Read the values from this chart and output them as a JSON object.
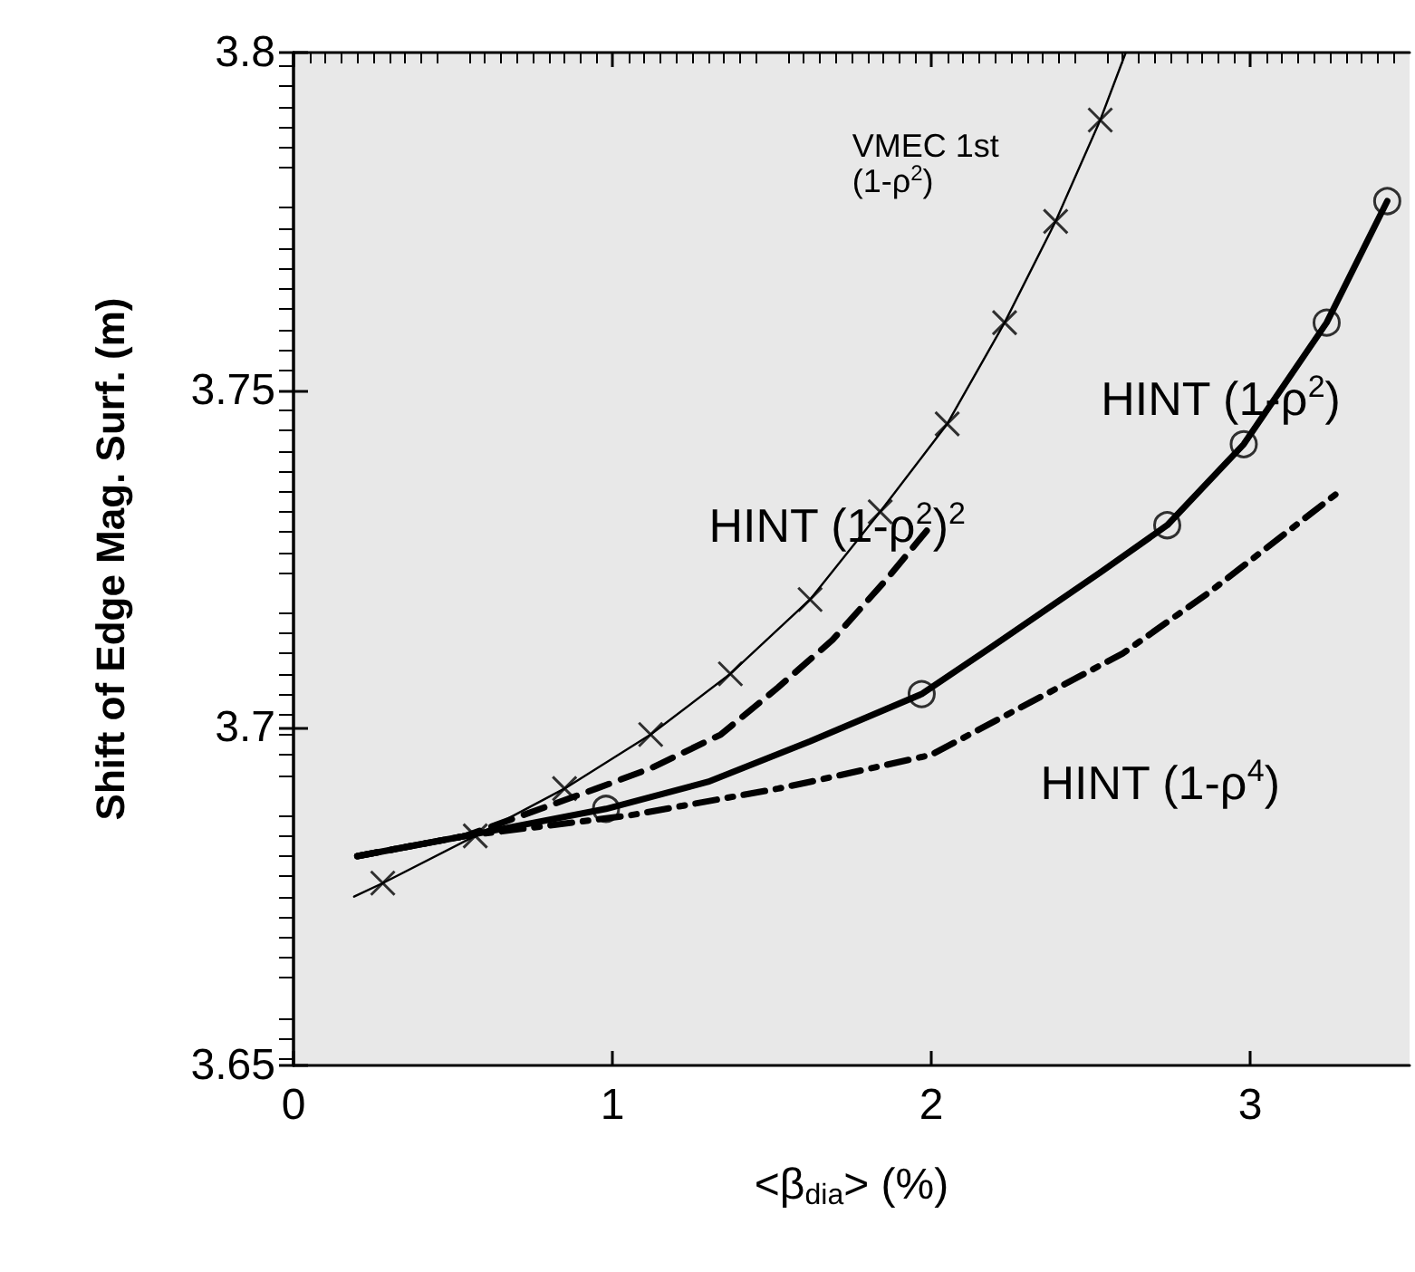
{
  "chart_data": {
    "type": "line",
    "xlabel": "<β$_{dia}$> (%)",
    "ylabel": "Shift of Edge Mag. Surf. (m)",
    "xlim": [
      0,
      3.5
    ],
    "xticks": [
      0,
      1,
      2,
      3
    ],
    "ylim": [
      3.65,
      3.8
    ],
    "yticks": [
      3.65,
      3.7,
      3.75,
      3.8
    ],
    "grid": false,
    "legend": false,
    "series": [
      {
        "name": "VMEC 1st\n(1-ρ$^{2}$)",
        "color": "#000000",
        "marker": "none",
        "line_style": "solid",
        "x": [
          0.19,
          0.28,
          0.57,
          0.85,
          1.12,
          1.37,
          1.62,
          1.84,
          2.05,
          2.23,
          2.39,
          2.53,
          2.61
        ],
        "values": [
          3.675,
          3.677,
          3.684,
          3.691,
          3.699,
          3.708,
          3.719,
          3.732,
          3.745,
          3.76,
          3.775,
          3.79,
          3.8
        ]
      },
      {
        "type": "scatter",
        "color": "#000000",
        "marker": "cross",
        "x": [
          0.28,
          0.57,
          0.85,
          1.12,
          1.37,
          1.62,
          1.84,
          2.05,
          2.23,
          2.39,
          2.53
        ],
        "values": [
          3.677,
          3.684,
          3.691,
          3.699,
          3.708,
          3.719,
          3.732,
          3.745,
          3.76,
          3.775,
          3.79
        ]
      },
      {
        "name": "HINT (1-ρ$^{2}$)",
        "color": "#000000",
        "marker": "none",
        "line_style": "solid",
        "x": [
          0.2,
          0.54,
          0.98,
          1.3,
          1.62,
          1.97,
          2.19,
          2.53,
          2.74,
          2.98,
          3.24,
          3.43
        ],
        "values": [
          3.681,
          3.684,
          3.688,
          3.692,
          3.698,
          3.705,
          3.712,
          3.723,
          3.73,
          3.742,
          3.76,
          3.778
        ]
      },
      {
        "type": "scatter",
        "color": "#000000",
        "marker": "circle",
        "x": [
          0.98,
          1.97,
          2.74,
          2.98,
          3.24,
          3.43
        ],
        "values": [
          3.688,
          3.705,
          3.73,
          3.742,
          3.76,
          3.778
        ]
      },
      {
        "name": "HINT (1-ρ$^{2}$)$^{2}$",
        "color": "#000000",
        "marker": "none",
        "line_style": "dashed",
        "x": [
          0.2,
          0.54,
          0.95,
          1.12,
          1.34,
          1.52,
          1.69,
          1.86,
          2.0
        ],
        "values": [
          3.681,
          3.684,
          3.691,
          3.694,
          3.699,
          3.706,
          3.713,
          3.722,
          3.73
        ]
      },
      {
        "name": "HINT (1-ρ$^{4}$)",
        "color": "#000000",
        "marker": "none",
        "line_style": "dotted",
        "x": [
          0.2,
          0.54,
          1.05,
          1.52,
          1.62,
          2.0,
          2.28,
          2.6,
          2.87,
          3.28
        ],
        "values": [
          3.681,
          3.684,
          3.687,
          3.691,
          3.692,
          3.696,
          3.703,
          3.711,
          3.72,
          3.735
        ]
      }
    ]
  }
}
